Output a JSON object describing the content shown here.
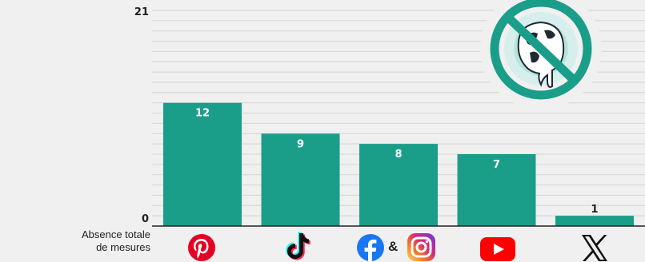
{
  "chart_data": {
    "type": "bar",
    "categories": [
      "Pinterest",
      "TikTok",
      "Facebook & Instagram",
      "YouTube",
      "X"
    ],
    "values": [
      12,
      9,
      8,
      7,
      1
    ],
    "ylim": [
      0,
      21
    ],
    "y_ticks": [
      "21",
      "0"
    ],
    "data_labels": [
      "12",
      "9",
      "8",
      "7",
      "1"
    ],
    "baseline_note": [
      "Absence totale",
      "de mesures"
    ],
    "grid": true,
    "colors": {
      "bar": "#1a9e8a",
      "grid": "#d4d4d4",
      "background": "#f0f0f0"
    }
  },
  "icons": [
    "pinterest-icon",
    "tiktok-icon",
    "facebook-icon",
    "instagram-icon",
    "youtube-icon",
    "x-icon",
    "melting-earth-prohibited-icon"
  ],
  "ampersand": "&"
}
